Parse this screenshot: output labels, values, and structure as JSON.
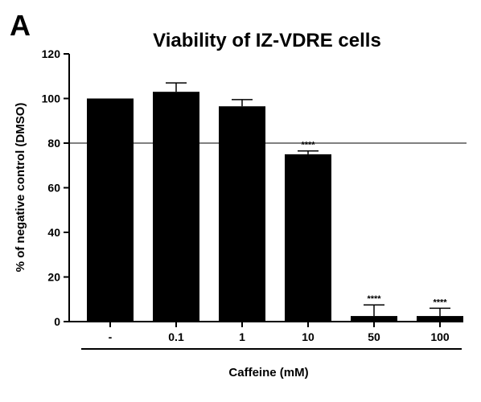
{
  "panel_letter": "A",
  "chart_data": {
    "type": "bar",
    "title": "Viability of IZ-VDRE cells",
    "xlabel": "Caffeine (mM)",
    "ylabel": "% of negative control (DMSO)",
    "categories": [
      "-",
      "0.1",
      "1",
      "10",
      "50",
      "100"
    ],
    "values": [
      100,
      103,
      96.5,
      75,
      2.5,
      2.5
    ],
    "errors": [
      0,
      4,
      3,
      1.5,
      5,
      3.5
    ],
    "significance": [
      "",
      "",
      "",
      "****",
      "****",
      "****"
    ],
    "ylim": [
      0,
      120
    ],
    "yticks": [
      0,
      20,
      40,
      60,
      80,
      100,
      120
    ],
    "reference_line": 80,
    "bar_color": "#000000",
    "grid": false
  }
}
